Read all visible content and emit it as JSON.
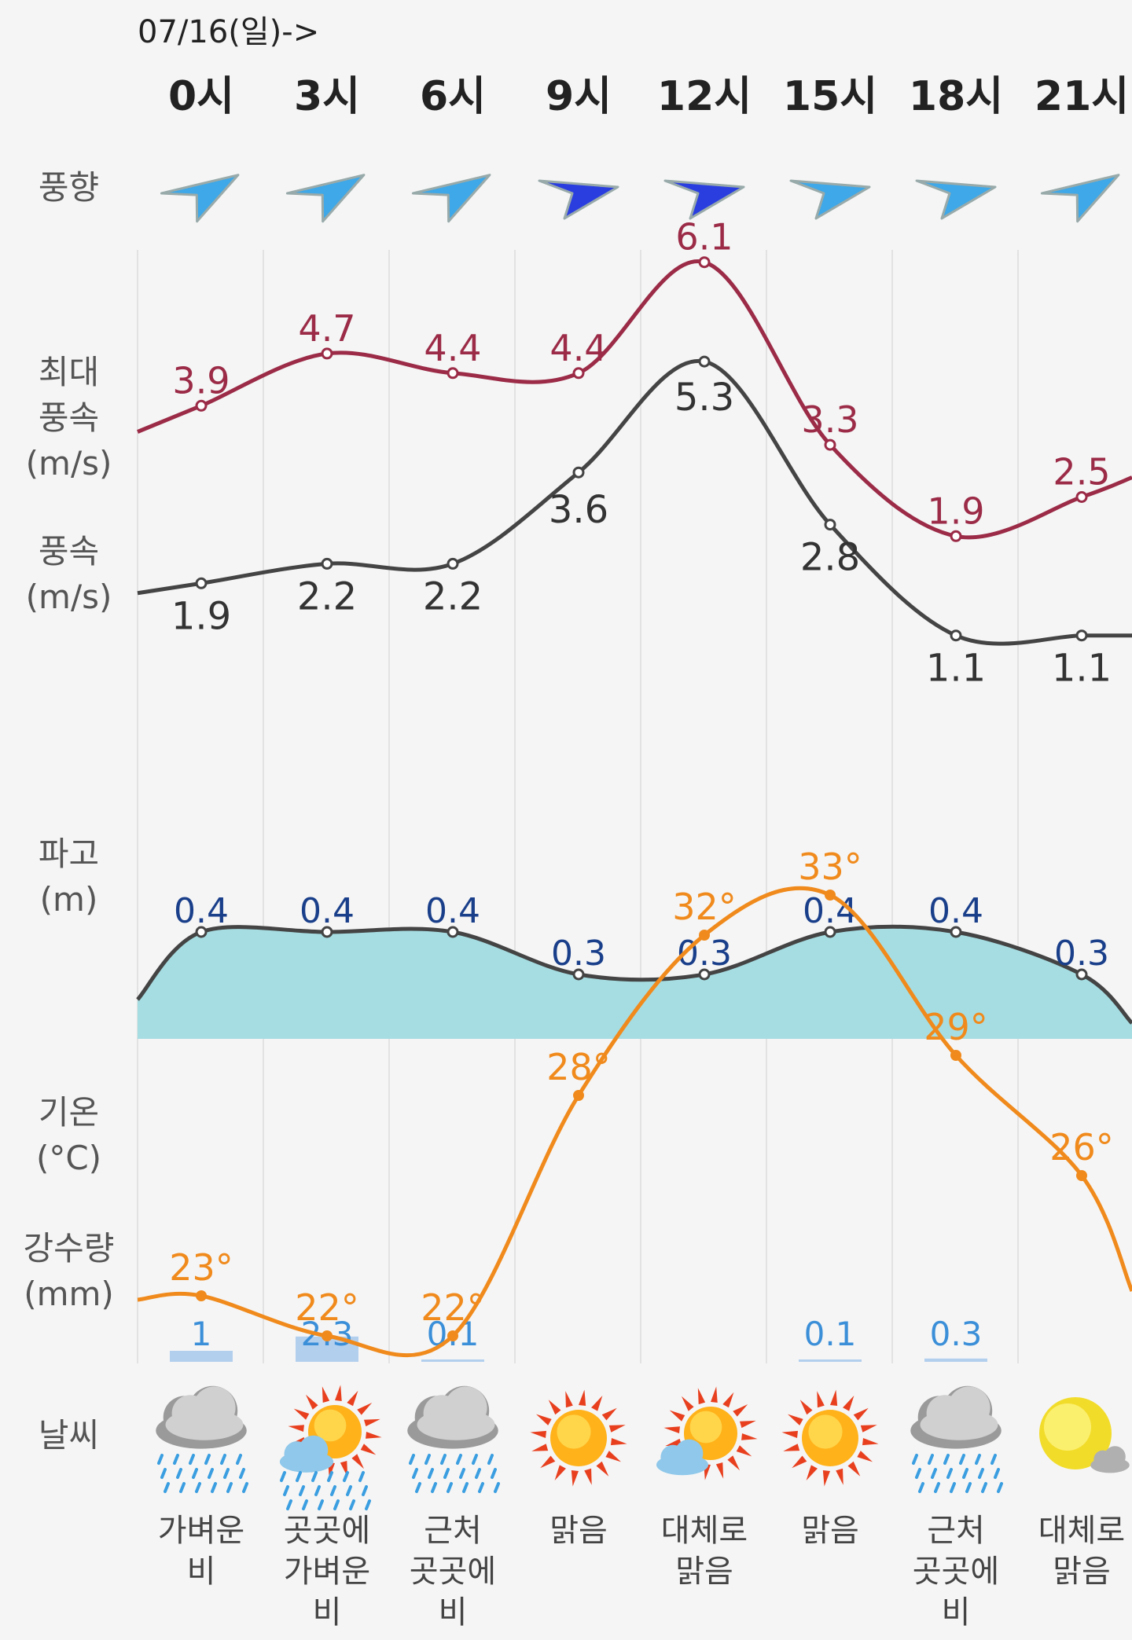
{
  "date_label": "07/16(일)->",
  "hours": [
    "0시",
    "3시",
    "6시",
    "9시",
    "12시",
    "15시",
    "18시",
    "21시"
  ],
  "row_labels": {
    "wind_dir": "풍향",
    "max_wind": "최대\n풍속\n(m/s)",
    "wind": "풍속\n(m/s)",
    "wave": "파고\n(m)",
    "temp": "기온\n(°C)",
    "precip": "강수량\n(mm)",
    "weather": "날씨"
  },
  "weather_desc": [
    "가벼운\n비",
    "곳곳에\n가벼운\n비",
    "근처\n곳곳에\n비",
    "맑음",
    "대체로\n맑음",
    "맑음",
    "근처\n곳곳에\n비",
    "대체로\n맑음"
  ],
  "weather_icons": [
    "rain-cloud-icon",
    "sun-cloud-rain-icon",
    "rain-cloud-icon",
    "sun-icon",
    "sun-cloud-icon",
    "sun-icon",
    "rain-cloud-icon",
    "moon-cloud-icon"
  ],
  "wind_dir_icons": [
    "arrow-northeast-icon",
    "arrow-northeast-icon",
    "arrow-northeast-icon",
    "arrow-east-icon",
    "arrow-east-icon",
    "arrow-east-icon",
    "arrow-east-icon",
    "arrow-northeast-icon"
  ],
  "colors": {
    "max_wind": "#9b2b47",
    "wind": "#444444",
    "wave_fill": "#a6dde2",
    "wave_line": "#444444",
    "wave_label": "#1a3f8a",
    "temp": "#f08a1c",
    "precip_bar": "#b3cfee",
    "precip_label": "#3b8fd8"
  },
  "chart_data": [
    {
      "type": "line",
      "title": "최대 풍속 / 풍속",
      "ylabel": "m/s",
      "categories": [
        "0시",
        "3시",
        "6시",
        "9시",
        "12시",
        "15시",
        "18시",
        "21시"
      ],
      "series": [
        {
          "name": "최대 풍속",
          "values": [
            3.9,
            4.7,
            4.4,
            4.4,
            6.1,
            3.3,
            1.9,
            2.5
          ],
          "labels": [
            "3.9",
            "4.7",
            "4.4",
            "4.4",
            "6.1",
            "3.3",
            "1.9",
            "2.5"
          ]
        },
        {
          "name": "풍속",
          "values": [
            1.9,
            2.2,
            2.2,
            3.6,
            5.3,
            2.8,
            1.1,
            1.1
          ],
          "labels": [
            "1.9",
            "2.2",
            "2.2",
            "3.6",
            "5.3",
            "2.8",
            "1.1",
            "1.1"
          ]
        }
      ]
    },
    {
      "type": "area",
      "title": "파고",
      "ylabel": "m",
      "categories": [
        "0시",
        "3시",
        "6시",
        "9시",
        "12시",
        "15시",
        "18시",
        "21시"
      ],
      "values": [
        0.4,
        0.4,
        0.4,
        0.3,
        0.3,
        0.4,
        0.4,
        0.3
      ],
      "labels": [
        "0.4",
        "0.4",
        "0.4",
        "0.3",
        "0.3",
        "0.4",
        "0.4",
        "0.3"
      ]
    },
    {
      "type": "line",
      "title": "기온",
      "ylabel": "°C",
      "categories": [
        "0시",
        "3시",
        "6시",
        "9시",
        "12시",
        "15시",
        "18시",
        "21시"
      ],
      "values": [
        23,
        22,
        22,
        28,
        32,
        33,
        29,
        26
      ],
      "labels": [
        "23°",
        "22°",
        "22°",
        "28°",
        "32°",
        "33°",
        "29°",
        "26°"
      ]
    },
    {
      "type": "bar",
      "title": "강수량",
      "ylabel": "mm",
      "categories": [
        "0시",
        "3시",
        "6시",
        "9시",
        "12시",
        "15시",
        "18시",
        "21시"
      ],
      "values": [
        1,
        2.3,
        0.1,
        null,
        null,
        0.1,
        0.3,
        null
      ],
      "labels": [
        "1",
        "2.3",
        "0.1",
        "",
        "",
        "0.1",
        "0.3",
        ""
      ]
    }
  ]
}
